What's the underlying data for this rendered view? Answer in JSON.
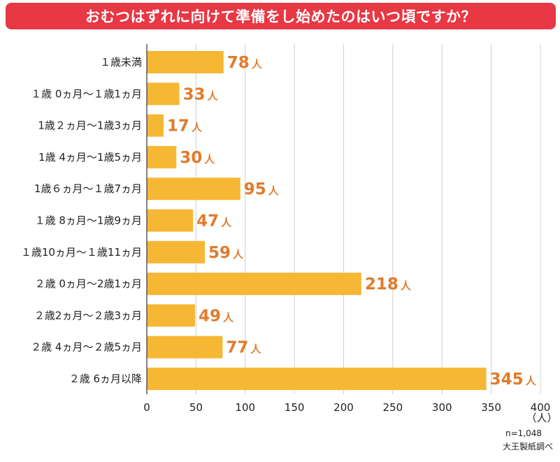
{
  "title": "おむつはずれに向けて準備をし始めたのはいつ頃ですか？",
  "colors": {
    "title_bg": "#e73844",
    "bar": "#f6b735",
    "value_text": "#e17b2c",
    "grid": "#cfcfcf"
  },
  "chart_data": {
    "type": "bar",
    "orientation": "horizontal",
    "title": "おむつはずれに向けて準備をし始めたのはいつ頃ですか？",
    "categories": [
      "１歳未満",
      "１歳 0ヵ月〜１歳1ヵ月",
      "1歳２ヵ月〜1歳3ヵ月",
      "1歳 4ヵ月〜1歳5ヵ月",
      "1歳６ヵ月〜１歳7ヵ月",
      "１歳 8ヵ月〜1歳9ヵ月",
      "１歳10ヵ月〜１歳11ヵ月",
      "２歳 0ヵ月〜2歳1ヵ月",
      "２歳2ヵ月〜２歳3ヵ月",
      "２歳 4ヵ月〜２歳5ヵ月",
      "２歳 6ヵ月以降"
    ],
    "values": [
      78,
      33,
      17,
      30,
      95,
      47,
      59,
      218,
      49,
      77,
      345
    ],
    "value_unit": "人",
    "xlim": [
      0,
      400
    ],
    "xticks": [
      0,
      50,
      100,
      150,
      200,
      250,
      300,
      350,
      400
    ],
    "xunit_label": "（人）",
    "grid": true
  },
  "notes": {
    "sample_size": "n=1,048",
    "source": "大王製紙調べ"
  }
}
